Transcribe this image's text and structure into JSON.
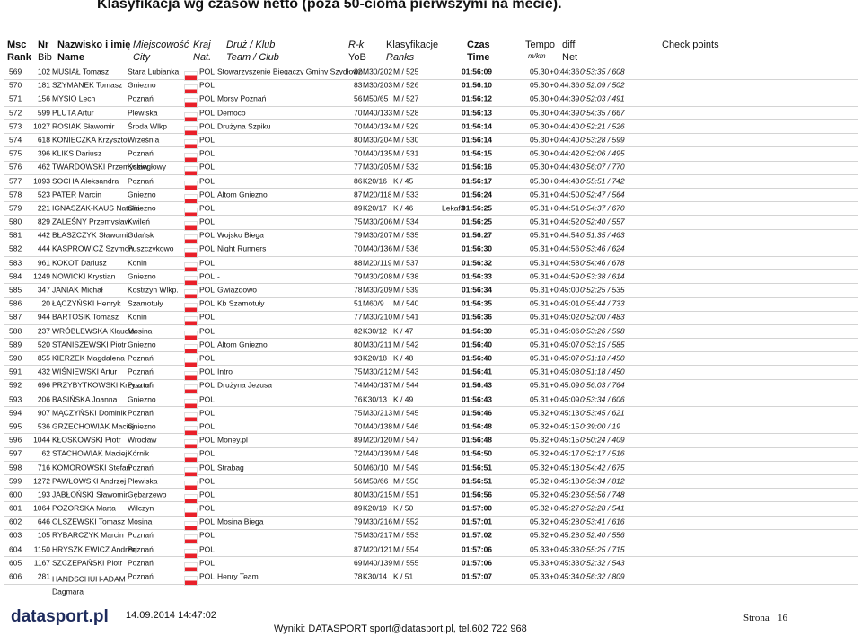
{
  "title": "Klasyfikacja wg czasów netto (poza 50-cioma pierwszymi na mecie).",
  "header": {
    "row1": [
      [
        "Msc",
        8,
        "b"
      ],
      [
        "Nr",
        42,
        "b"
      ],
      [
        "Nazwisko i imię",
        64,
        "b"
      ],
      [
        "Miejscowość",
        148,
        "i"
      ],
      [
        "Kraj",
        215,
        "i"
      ],
      [
        "Druż / Klub",
        252,
        "i"
      ],
      [
        "R-k",
        388,
        "i"
      ],
      [
        "Klasyfikacje",
        430,
        ""
      ],
      [
        "Czas",
        520,
        "b"
      ],
      [
        "Tempo",
        585,
        ""
      ],
      [
        "diff",
        626,
        ""
      ],
      [
        "Check points",
        737,
        ""
      ]
    ],
    "row2": [
      [
        "Rank",
        8,
        "b"
      ],
      [
        "Bib",
        42,
        ""
      ],
      [
        "Name",
        64,
        "b"
      ],
      [
        "City",
        148,
        "i"
      ],
      [
        "Nat.",
        215,
        "i"
      ],
      [
        "Team / Club",
        252,
        "i"
      ],
      [
        "YoB",
        388,
        ""
      ],
      [
        "Ranks",
        430,
        "i"
      ],
      [
        "Time",
        520,
        "b"
      ],
      [
        "m/km",
        588,
        "i s"
      ],
      [
        "Net",
        626,
        ""
      ]
    ]
  },
  "table": {
    "rows": [
      [
        569,
        102,
        "MUSIAŁ Tomasz",
        "Stara Lubianka",
        "POL",
        "Stowarzyszenie Biegaczy Gminy Szydłowo",
        82,
        "M30/202",
        "M / 525",
        "01:56:09",
        "05.30",
        "+0:44:36",
        "0:53:35 / 608"
      ],
      [
        570,
        181,
        "SZYMANEK Tomasz",
        "Gniezno",
        "POL",
        null,
        83,
        "M30/203",
        "M / 526",
        "01:56:10",
        "05.30",
        "+0:44:36",
        "0:52:09 / 502"
      ],
      [
        571,
        156,
        "MYSIO Lech",
        "Poznań",
        "POL",
        "Morsy Poznań",
        56,
        "M50/65",
        "M / 527",
        "01:56:12",
        "05.30",
        "+0:44:39",
        "0:52:03 / 491"
      ],
      [
        572,
        599,
        "PLUTA Artur",
        "Plewiska",
        "POL",
        "Democo",
        70,
        "M40/133",
        "M / 528",
        "01:56:13",
        "05.30",
        "+0:44:39",
        "0:54:35 / 667"
      ],
      [
        573,
        1027,
        "ROSIAK Sławomir",
        "Środa Wlkp",
        "POL",
        "Drużyna Szpiku",
        70,
        "M40/134",
        "M / 529",
        "01:56:14",
        "05.30",
        "+0:44:40",
        "0:52:21 / 526"
      ],
      [
        574,
        618,
        "KONIECZKA Krzysztof",
        "Września",
        "POL",
        null,
        80,
        "M30/204",
        "M / 530",
        "01:56:14",
        "05.30",
        "+0:44:40",
        "0:53:28 / 599"
      ],
      [
        575,
        396,
        "KLIKS Dariusz",
        "Poznań",
        "POL",
        null,
        70,
        "M40/135",
        "M / 531",
        "01:56:15",
        "05.30",
        "+0:44:42",
        "0:52:06 / 495"
      ],
      [
        576,
        462,
        "TWARDOWSKI Przemysław",
        "Koziegłowy",
        "POL",
        null,
        77,
        "M30/205",
        "M / 532",
        "01:56:16",
        "05.30",
        "+0:44:43",
        "0:56:07 / 770"
      ],
      [
        577,
        1093,
        "SOCHA Aleksandra",
        "Poznań",
        "POL",
        null,
        86,
        "K20/16",
        "K / 45",
        "01:56:17",
        "05.30",
        "+0:44:43",
        "0:55:51 / 742"
      ],
      [
        578,
        523,
        "PATER Marcin",
        "Gniezno",
        "POL",
        "Altom Gniezno",
        87,
        "M20/118",
        "M / 533",
        "01:56:24",
        "05.31",
        "+0:44:50",
        "0:52:47 / 564"
      ],
      [
        579,
        221,
        "IGNASZAK-KAUS Natalia",
        "Gniezno",
        "POL",
        null,
        89,
        "K20/17",
        "K / 46",
        "01:56:25",
        "05.31",
        "+0:44:51",
        "0:54:37 / 670",
        "Lekaf3"
      ],
      [
        580,
        829,
        "ZALEŚNY Przemysław",
        "Kwileń",
        "POL",
        null,
        75,
        "M30/206",
        "M / 534",
        "01:56:25",
        "05.31",
        "+0:44:52",
        "0:52:40 / 557"
      ],
      [
        581,
        442,
        "BŁASZCZYK Sławomir",
        "Gdańsk",
        "POL",
        "Wojsko Biega",
        79,
        "M30/207",
        "M / 535",
        "01:56:27",
        "05.31",
        "+0:44:54",
        "0:51:35 / 463"
      ],
      [
        582,
        444,
        "KASPROWICZ Szymon",
        "Puszczykowo",
        "POL",
        "Night Runners",
        70,
        "M40/136",
        "M / 536",
        "01:56:30",
        "05.31",
        "+0:44:56",
        "0:53:46 / 624"
      ],
      [
        583,
        961,
        "KOKOT Dariusz",
        "Konin",
        "POL",
        null,
        88,
        "M20/119",
        "M / 537",
        "01:56:32",
        "05.31",
        "+0:44:58",
        "0:54:46 / 678"
      ],
      [
        584,
        1249,
        "NOWICKI Krystian",
        "Gniezno",
        "POL",
        "-",
        79,
        "M30/208",
        "M / 538",
        "01:56:33",
        "05.31",
        "+0:44:59",
        "0:53:38 / 614"
      ],
      [
        585,
        347,
        "JANIAK Michał",
        "Kostrzyn Wlkp.",
        "POL",
        "Gwiazdowo",
        78,
        "M30/209",
        "M / 539",
        "01:56:34",
        "05.31",
        "+0:45:00",
        "0:52:25 / 535"
      ],
      [
        586,
        20,
        "ŁĄCZYŃSKI Henryk",
        "Szamotuły",
        "POL",
        "Kb Szamotuły",
        51,
        "M60/9",
        "M / 540",
        "01:56:35",
        "05.31",
        "+0:45:01",
        "0:55:44 / 733"
      ],
      [
        587,
        944,
        "BARTOSIK Tomasz",
        "Konin",
        "POL",
        null,
        77,
        "M30/210",
        "M / 541",
        "01:56:36",
        "05.31",
        "+0:45:02",
        "0:52:00 / 483"
      ],
      [
        588,
        237,
        "WRÓBLEWSKA Klaudia",
        "Mosina",
        "POL",
        null,
        82,
        "K30/12",
        "K / 47",
        "01:56:39",
        "05.31",
        "+0:45:06",
        "0:53:26 / 598"
      ],
      [
        589,
        520,
        "STANISZEWSKI Piotr",
        "Gniezno",
        "POL",
        "Altom Gniezno",
        80,
        "M30/211",
        "M / 542",
        "01:56:40",
        "05.31",
        "+0:45:07",
        "0:53:15 / 585"
      ],
      [
        590,
        855,
        "KIERZEK Magdalena",
        "Poznań",
        "POL",
        null,
        93,
        "K20/18",
        "K / 48",
        "01:56:40",
        "05.31",
        "+0:45:07",
        "0:51:18 / 450"
      ],
      [
        591,
        432,
        "WIŚNIEWSKI Artur",
        "Poznań",
        "POL",
        "Intro",
        75,
        "M30/212",
        "M / 543",
        "01:56:41",
        "05.31",
        "+0:45:08",
        "0:51:18 / 450"
      ],
      [
        592,
        696,
        "PRZYBYTKOWSKI Krzysztof",
        "Poznań",
        "POL",
        "Drużyna Jezusa",
        74,
        "M40/137",
        "M / 544",
        "01:56:43",
        "05.31",
        "+0:45:09",
        "0:56:03 / 764"
      ],
      [
        593,
        206,
        "BASIŃSKA Joanna",
        "Gniezno",
        "POL",
        null,
        76,
        "K30/13",
        "K / 49",
        "01:56:43",
        "05.31",
        "+0:45:09",
        "0:53:34 / 606"
      ],
      [
        594,
        907,
        "MĄCZYŃSKI Dominik",
        "Poznań",
        "POL",
        null,
        75,
        "M30/213",
        "M / 545",
        "01:56:46",
        "05.32",
        "+0:45:13",
        "0:53:45 / 621"
      ],
      [
        595,
        536,
        "GRZECHOWIAK Maciej",
        "Gniezno",
        "POL",
        null,
        70,
        "M40/138",
        "M / 546",
        "01:56:48",
        "05.32",
        "+0:45:15",
        "0:39:00 / 19"
      ],
      [
        596,
        1044,
        "KŁOSKOWSKI Piotr",
        "Wrocław",
        "POL",
        "Money.pl",
        89,
        "M20/120",
        "M / 547",
        "01:56:48",
        "05.32",
        "+0:45:15",
        "0:50:24 / 409"
      ],
      [
        597,
        62,
        "STACHOWIAK Maciej",
        "Kórnik",
        "POL",
        null,
        72,
        "M40/139",
        "M / 548",
        "01:56:50",
        "05.32",
        "+0:45:17",
        "0:52:17 / 516"
      ],
      [
        598,
        716,
        "KOMOROWSKI Stefan",
        "Poznań",
        "POL",
        "Strabag",
        50,
        "M60/10",
        "M / 549",
        "01:56:51",
        "05.32",
        "+0:45:18",
        "0:54:42 / 675"
      ],
      [
        599,
        1272,
        "PAWŁOWSKI Andrzej",
        "Plewiska",
        "POL",
        null,
        56,
        "M50/66",
        "M / 550",
        "01:56:51",
        "05.32",
        "+0:45:18",
        "0:56:34 / 812"
      ],
      [
        600,
        193,
        "JABŁOŃSKI Sławomir",
        "Gębarzewo",
        "POL",
        null,
        80,
        "M30/215",
        "M / 551",
        "01:56:56",
        "05.32",
        "+0:45:23",
        "0:55:56 / 748"
      ],
      [
        601,
        1064,
        "POZORSKA Marta",
        "Wilczyn",
        "POL",
        null,
        89,
        "K20/19",
        "K / 50",
        "01:57:00",
        "05.32",
        "+0:45:27",
        "0:52:28 / 541"
      ],
      [
        602,
        646,
        "OLSZEWSKI Tomasz",
        "Mosina",
        "POL",
        "Mosina Biega",
        79,
        "M30/216",
        "M / 552",
        "01:57:01",
        "05.32",
        "+0:45:28",
        "0:53:41 / 616"
      ],
      [
        603,
        105,
        "RYBARCZYK Marcin",
        "Poznań",
        "POL",
        null,
        75,
        "M30/217",
        "M / 553",
        "01:57:02",
        "05.32",
        "+0:45:28",
        "0:52:40 / 556"
      ],
      [
        604,
        1150,
        "HRYSZKIEWICZ Andrzej",
        "Poznań",
        "POL",
        null,
        87,
        "M20/121",
        "M / 554",
        "01:57:06",
        "05.33",
        "+0:45:33",
        "0:55:25 / 715"
      ],
      [
        605,
        1167,
        "SZCZEPAŃSKI Piotr",
        "Poznań",
        "POL",
        null,
        69,
        "M40/139",
        "M / 555",
        "01:57:06",
        "05.33",
        "+0:45:33",
        "0:52:32 / 543"
      ],
      [
        606,
        281,
        "HANDSCHUH-ADAM\nDagmara",
        "Poznań",
        "POL",
        "Henry Team",
        78,
        "K30/14",
        "K / 51",
        "01:57:07",
        "05.33",
        "+0:45:34",
        "0:56:32 / 809"
      ]
    ]
  },
  "footer": {
    "logo": "datasport.pl",
    "date": "14.09.2014 14:47:02",
    "contact": "Wyniki: DATASPORT sport@datasport.pl, tel.602 722 968",
    "page_label": "Strona",
    "page": 16
  }
}
